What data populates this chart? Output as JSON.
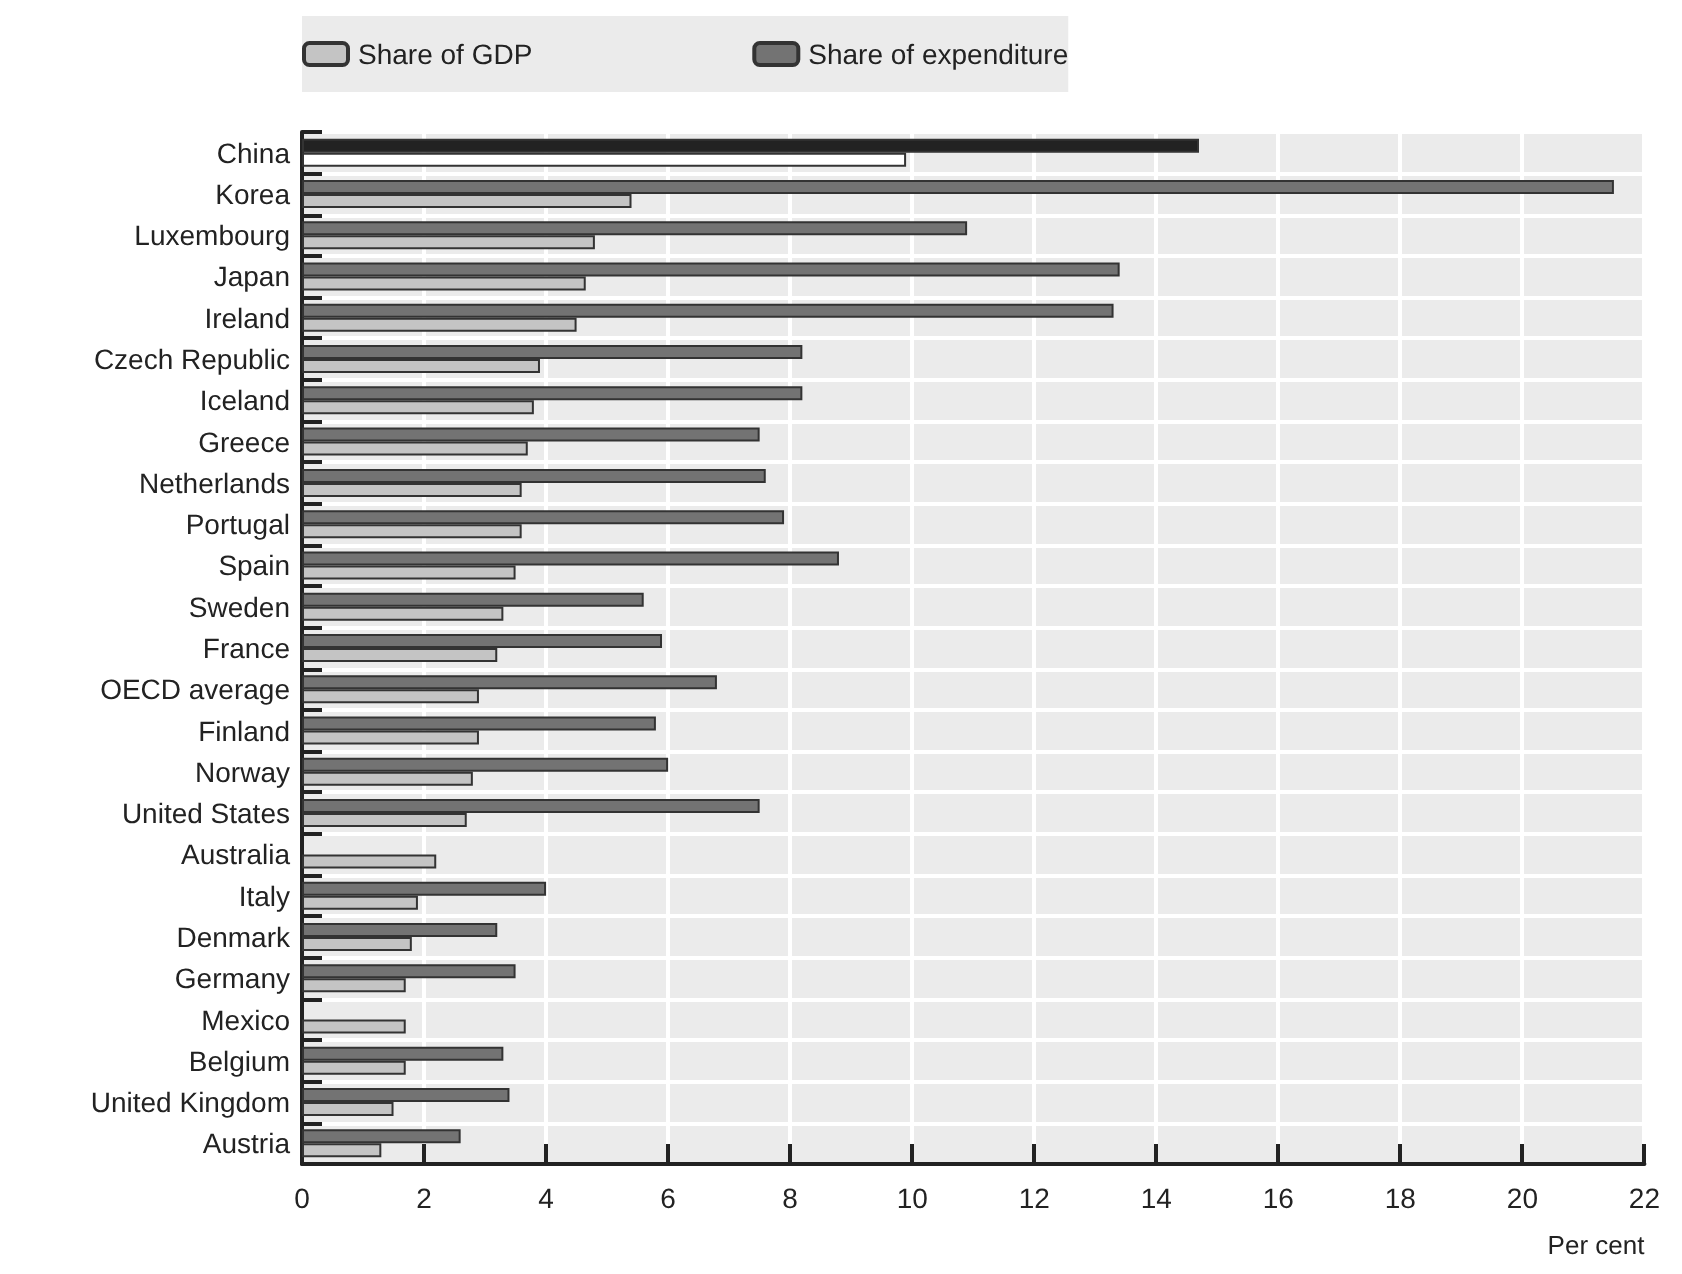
{
  "chart_data": {
    "type": "bar",
    "orientation": "horizontal",
    "categories": [
      "China",
      "Korea",
      "Luxembourg",
      "Japan",
      "Ireland",
      "Czech Republic",
      "Iceland",
      "Greece",
      "Netherlands",
      "Portugal",
      "Spain",
      "Sweden",
      "France",
      "OECD average",
      "Finland",
      "Norway",
      "United States",
      "Australia",
      "Italy",
      "Denmark",
      "Germany",
      "Mexico",
      "Belgium",
      "United Kingdom",
      "Austria"
    ],
    "series": [
      {
        "name": "Share of GDP",
        "color": "#c4c4c4",
        "colors": [
          "#ffffff",
          "#c4c4c4",
          "#c4c4c4",
          "#c4c4c4",
          "#c4c4c4",
          "#c4c4c4",
          "#c4c4c4",
          "#c4c4c4",
          "#c4c4c4",
          "#c4c4c4",
          "#c4c4c4",
          "#c4c4c4",
          "#c4c4c4",
          "#c4c4c4",
          "#c4c4c4",
          "#c4c4c4",
          "#c4c4c4",
          "#c4c4c4",
          "#c4c4c4",
          "#c4c4c4",
          "#c4c4c4",
          "#c4c4c4",
          "#c4c4c4",
          "#c4c4c4",
          "#c4c4c4"
        ],
        "values": [
          9.9,
          5.4,
          4.8,
          4.65,
          4.5,
          3.9,
          3.8,
          3.7,
          3.6,
          3.6,
          3.5,
          3.3,
          3.2,
          2.9,
          2.9,
          2.8,
          2.7,
          2.2,
          1.9,
          1.8,
          1.7,
          1.7,
          1.7,
          1.5,
          1.3
        ]
      },
      {
        "name": "Share of expenditure",
        "color": "#737373",
        "colors": [
          "#222222",
          "#737373",
          "#737373",
          "#737373",
          "#737373",
          "#737373",
          "#737373",
          "#737373",
          "#737373",
          "#737373",
          "#737373",
          "#737373",
          "#737373",
          "#737373",
          "#737373",
          "#737373",
          "#737373",
          "#737373",
          "#737373",
          "#737373",
          "#737373",
          "#737373",
          "#737373",
          "#737373",
          "#737373"
        ],
        "values": [
          14.7,
          21.5,
          10.9,
          13.4,
          13.3,
          8.2,
          8.2,
          7.5,
          7.6,
          7.9,
          8.8,
          5.6,
          5.9,
          6.8,
          5.8,
          6.0,
          7.5,
          null,
          4.0,
          3.2,
          3.5,
          null,
          3.3,
          3.4,
          2.6
        ]
      }
    ],
    "xlim": [
      0,
      22
    ],
    "xticks": [
      0,
      2,
      4,
      6,
      8,
      10,
      12,
      14,
      16,
      18,
      20,
      22
    ],
    "xlabel": "Per cent",
    "grid": true,
    "legend": "top"
  }
}
